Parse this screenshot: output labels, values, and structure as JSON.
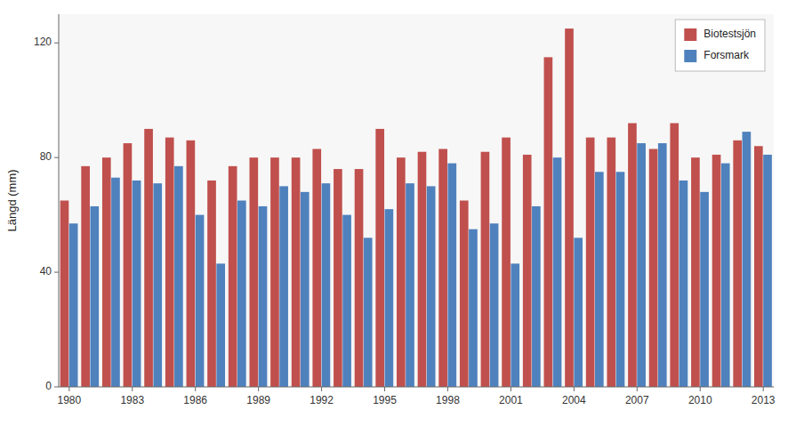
{
  "chart_data": {
    "type": "bar",
    "ylabel": "Längd (mm)",
    "categories": [
      "1980",
      null,
      null,
      "1983",
      null,
      null,
      "1986",
      null,
      null,
      "1989",
      null,
      null,
      "1992",
      null,
      null,
      "1995",
      null,
      null,
      "1998",
      null,
      null,
      "2001",
      null,
      null,
      "2004",
      null,
      null,
      "2007",
      null,
      null,
      "2010",
      null,
      null,
      "2013"
    ],
    "series": [
      {
        "name": "Biotestsjön",
        "color": "#C0504D",
        "values": [
          65,
          77,
          80,
          85,
          90,
          87,
          86,
          72,
          77,
          80,
          80,
          80,
          83,
          76,
          76,
          90,
          80,
          82,
          83,
          65,
          82,
          87,
          81,
          115,
          125,
          87,
          87,
          92,
          83,
          92,
          80,
          81,
          86,
          84
        ]
      },
      {
        "name": "Forsmark",
        "color": "#4F81BD",
        "values": [
          57,
          63,
          73,
          72,
          71,
          77,
          60,
          43,
          65,
          63,
          70,
          68,
          71,
          60,
          52,
          62,
          71,
          70,
          78,
          55,
          57,
          43,
          63,
          80,
          52,
          75,
          75,
          85,
          85,
          72,
          68,
          78,
          89,
          81
        ]
      }
    ],
    "ylim": [
      0,
      130
    ],
    "yticks": [
      0,
      40,
      80,
      120
    ],
    "grid": false,
    "legend": "upper right"
  }
}
